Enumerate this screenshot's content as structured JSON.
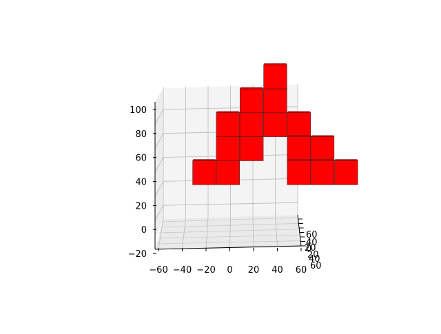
{
  "chart_data": {
    "type": "bar3d",
    "title": "",
    "xlabel": "",
    "ylabel": "",
    "zlabel": "",
    "x_ticks": [
      -60,
      -40,
      -20,
      0,
      20,
      40,
      60
    ],
    "y_ticks": [
      -60,
      -40,
      -20,
      0,
      20,
      40,
      60
    ],
    "z_ticks": [
      -20,
      0,
      20,
      40,
      60,
      80,
      100
    ],
    "y_tick_labels": [
      "60",
      "40",
      "20",
      "0",
      "20",
      "40",
      "60"
    ],
    "xlim": [
      -60,
      60
    ],
    "ylim": [
      -60,
      60
    ],
    "zlim": [
      -20,
      100
    ],
    "bar_color": "#ff0000",
    "edge_color": "#222222",
    "grid": true,
    "cubes": [
      {
        "x": -40,
        "z_bottom": 20,
        "z_top": 40
      },
      {
        "x": -20,
        "z_bottom": 20,
        "z_top": 40
      },
      {
        "x": -20,
        "z_bottom": 40,
        "z_top": 60
      },
      {
        "x": -20,
        "z_bottom": 60,
        "z_top": 80
      },
      {
        "x": 0,
        "z_bottom": 40,
        "z_top": 60
      },
      {
        "x": 0,
        "z_bottom": 60,
        "z_top": 80
      },
      {
        "x": 0,
        "z_bottom": 80,
        "z_top": 100
      },
      {
        "x": 20,
        "z_bottom": 60,
        "z_top": 80
      },
      {
        "x": 20,
        "z_bottom": 80,
        "z_top": 100
      },
      {
        "x": 20,
        "z_bottom": 100,
        "z_top": 120
      },
      {
        "x": 40,
        "z_bottom": 60,
        "z_top": 80
      },
      {
        "x": 40,
        "z_bottom": 40,
        "z_top": 60
      },
      {
        "x": 40,
        "z_bottom": 20,
        "z_top": 40
      },
      {
        "x": 60,
        "z_bottom": 40,
        "z_top": 60
      },
      {
        "x": 60,
        "z_bottom": 20,
        "z_top": 40
      },
      {
        "x": 80,
        "z_bottom": 20,
        "z_top": 40
      }
    ]
  }
}
